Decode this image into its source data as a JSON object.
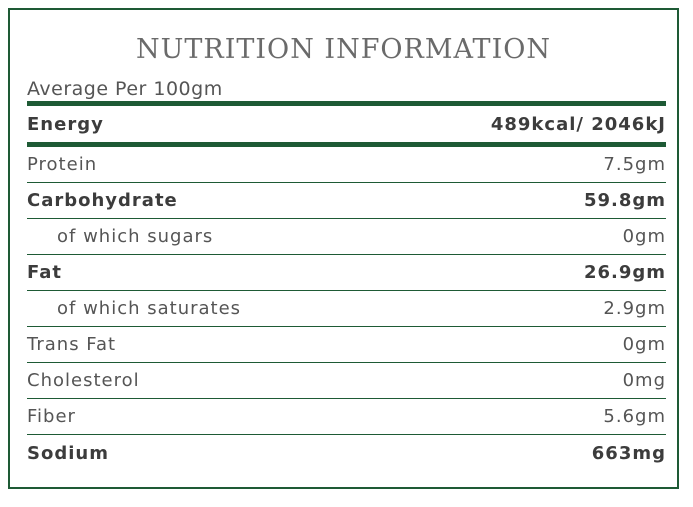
{
  "title": "NUTRITION INFORMATION",
  "subtitle": "Average Per 100gm",
  "colors": {
    "accent": "#1e5a35"
  },
  "rows": [
    {
      "label": "Energy",
      "value": "489kcal/ 2046kJ"
    },
    {
      "label": "Protein",
      "value": "7.5gm"
    },
    {
      "label": "Carbohydrate",
      "value": "59.8gm"
    },
    {
      "label": "of which sugars",
      "value": "0gm"
    },
    {
      "label": "Fat",
      "value": "26.9gm"
    },
    {
      "label": "of which saturates",
      "value": "2.9gm"
    },
    {
      "label": "Trans Fat",
      "value": "0gm"
    },
    {
      "label": "Cholesterol",
      "value": "0mg"
    },
    {
      "label": "Fiber",
      "value": "5.6gm"
    },
    {
      "label": "Sodium",
      "value": "663mg"
    }
  ]
}
